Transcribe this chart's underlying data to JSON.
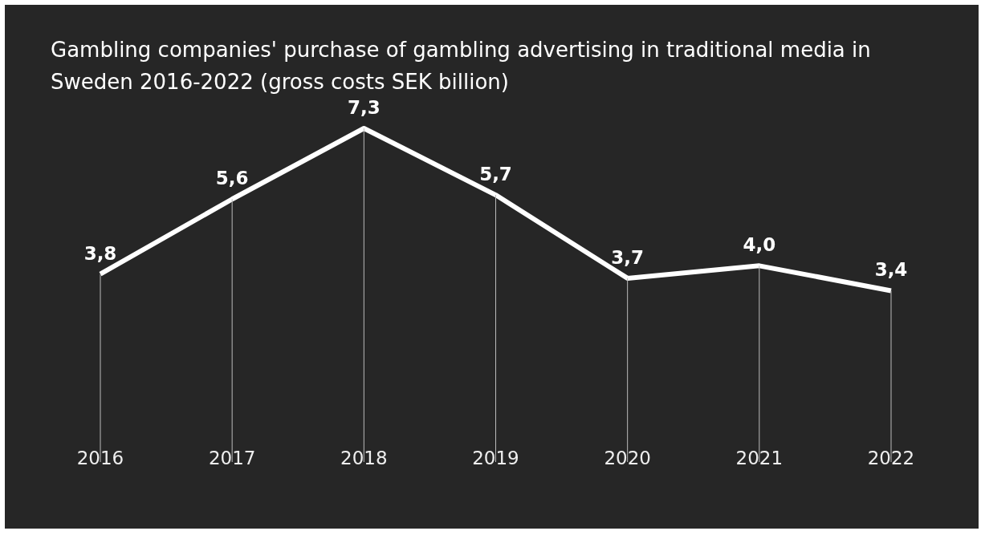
{
  "chart_data": {
    "type": "line",
    "title": "Gambling companies' purchase of gambling advertising in traditional media in Sweden 2016-2022 (gross costs SEK billion)",
    "categories": [
      "2016",
      "2017",
      "2018",
      "2019",
      "2020",
      "2021",
      "2022"
    ],
    "series": [
      {
        "color": "#ffffff",
        "values": [
          3.8,
          5.6,
          7.3,
          5.7,
          3.7,
          4.0,
          3.4
        ],
        "value_labels": [
          "3,8",
          "5,6",
          "7,3",
          "5,7",
          "3,7",
          "4,0",
          "3,4"
        ]
      }
    ],
    "tick_labels": "x",
    "grid": "x",
    "line_style": "solid"
  }
}
